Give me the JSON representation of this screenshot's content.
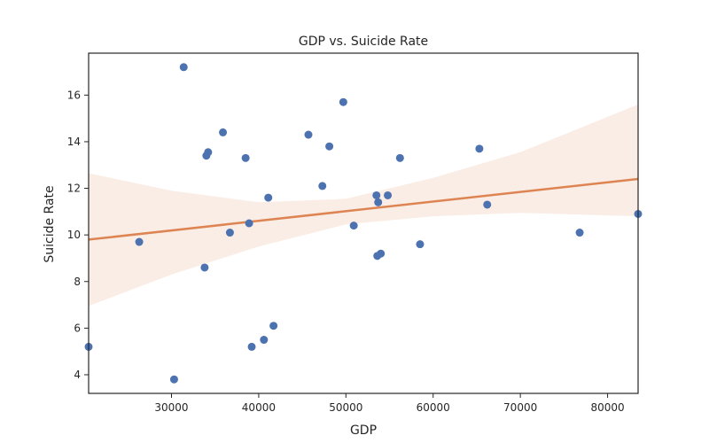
{
  "chart_data": {
    "type": "scatter",
    "title": "GDP vs. Suicide Rate",
    "xlabel": "GDP",
    "ylabel": "Suicide Rate",
    "xlim": [
      20500,
      83500
    ],
    "ylim": [
      3.2,
      17.8
    ],
    "x_ticks": [
      30000,
      40000,
      50000,
      60000,
      70000,
      80000
    ],
    "y_ticks": [
      4,
      6,
      8,
      10,
      12,
      14,
      16
    ],
    "grid": false,
    "points": [
      {
        "x": 20500,
        "y": 5.2
      },
      {
        "x": 26300,
        "y": 9.7
      },
      {
        "x": 30300,
        "y": 3.8
      },
      {
        "x": 31400,
        "y": 17.2
      },
      {
        "x": 33800,
        "y": 8.6
      },
      {
        "x": 34000,
        "y": 13.4
      },
      {
        "x": 34200,
        "y": 13.55
      },
      {
        "x": 35900,
        "y": 14.4
      },
      {
        "x": 36700,
        "y": 10.1
      },
      {
        "x": 38500,
        "y": 13.3
      },
      {
        "x": 38900,
        "y": 10.5
      },
      {
        "x": 39200,
        "y": 5.2
      },
      {
        "x": 40600,
        "y": 5.5
      },
      {
        "x": 41100,
        "y": 11.6
      },
      {
        "x": 41700,
        "y": 6.1
      },
      {
        "x": 45700,
        "y": 14.3
      },
      {
        "x": 47300,
        "y": 12.1
      },
      {
        "x": 48100,
        "y": 13.8
      },
      {
        "x": 49700,
        "y": 15.7
      },
      {
        "x": 50900,
        "y": 10.4
      },
      {
        "x": 53500,
        "y": 11.7
      },
      {
        "x": 53600,
        "y": 9.1
      },
      {
        "x": 53700,
        "y": 11.4
      },
      {
        "x": 54000,
        "y": 9.2
      },
      {
        "x": 54800,
        "y": 11.7
      },
      {
        "x": 56200,
        "y": 13.3
      },
      {
        "x": 58500,
        "y": 9.6
      },
      {
        "x": 65300,
        "y": 13.7
      },
      {
        "x": 66200,
        "y": 11.3
      },
      {
        "x": 76800,
        "y": 10.1
      },
      {
        "x": 83500,
        "y": 10.9
      }
    ],
    "regression": {
      "x": [
        20500,
        83500
      ],
      "y": [
        9.8,
        12.4
      ],
      "ci_x": [
        20500,
        30000,
        40000,
        50000,
        60000,
        70000,
        83500
      ],
      "ci_upper": [
        12.65,
        11.9,
        11.4,
        11.55,
        12.45,
        13.55,
        15.6
      ],
      "ci_lower": [
        6.95,
        8.3,
        9.5,
        10.45,
        10.8,
        10.95,
        10.8
      ]
    },
    "colors": {
      "points": "#4c72b0",
      "line": "#dd8452",
      "band": "#dd8452",
      "axis": "#262626"
    }
  }
}
